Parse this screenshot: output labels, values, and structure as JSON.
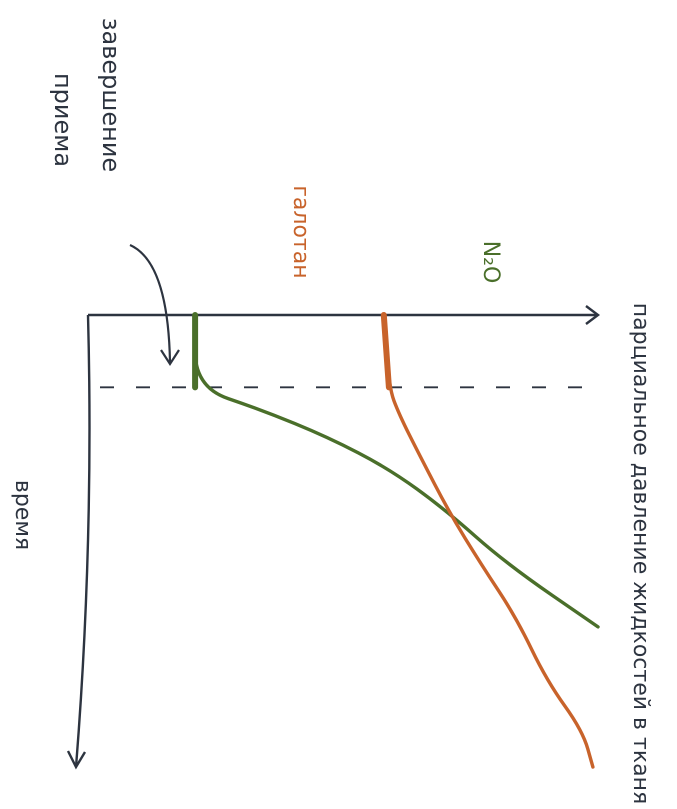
{
  "chart_data": {
    "type": "line",
    "orientation": "rotated-90-clockwise",
    "y_label": "парциальное давление жидкостей в тканях",
    "x_label": "время",
    "xlim": [
      0,
      1
    ],
    "ylim": [
      0,
      1
    ],
    "series": [
      {
        "name": "N₂O",
        "color": "#4a6f2a",
        "points": [
          [
            0.0,
            0.79
          ],
          [
            0.16,
            0.79
          ],
          [
            0.21,
            0.66
          ],
          [
            0.27,
            0.53
          ],
          [
            0.34,
            0.41
          ],
          [
            0.43,
            0.3
          ],
          [
            0.55,
            0.18
          ],
          [
            0.69,
            0.0
          ]
        ]
      },
      {
        "name": "галотан",
        "color": "#c8632b",
        "points": [
          [
            0.0,
            0.42
          ],
          [
            0.16,
            0.41
          ],
          [
            0.22,
            0.39
          ],
          [
            0.31,
            0.35
          ],
          [
            0.44,
            0.29
          ],
          [
            0.55,
            0.23
          ],
          [
            0.67,
            0.16
          ],
          [
            0.81,
            0.1
          ],
          [
            0.92,
            0.03
          ],
          [
            1.0,
            0.01
          ]
        ]
      }
    ],
    "annotations": [
      {
        "id": "end-intake",
        "text": "завершение приема",
        "points_to_x": 0.16
      }
    ],
    "reference_lines": [
      {
        "axis": "x",
        "value": 0.16,
        "style": "dashed"
      }
    ],
    "grid": false,
    "legend": "none"
  }
}
